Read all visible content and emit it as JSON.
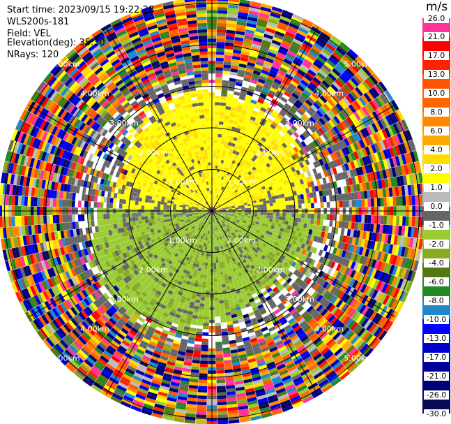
{
  "info": {
    "start_time": "Start time: 2023/09/15 19:22:28",
    "instrument": "WLS200s-181",
    "field": "Field: VEL",
    "elevation": "Elevation(deg): 35.30",
    "nrays": "NRays: 120"
  },
  "range_labels": [
    "1.00km",
    "2.00km",
    "3.00km",
    "4.00km",
    "5.00km"
  ],
  "colorbar": {
    "unit": "m/s",
    "ticks": [
      "26.0",
      "21.0",
      "17.0",
      "13.0",
      "10.0",
      "8.0",
      "6.0",
      "4.0",
      "2.0",
      "1.0",
      "0.0",
      "-1.0",
      "-2.0",
      "-4.0",
      "-6.0",
      "-8.0",
      "-10.0",
      "-13.0",
      "-17.0",
      "-21.0",
      "-26.0",
      "-30.0"
    ],
    "colors": [
      "#ff3399",
      "#ff0000",
      "#ff2200",
      "#ff5500",
      "#ff6600",
      "#ff8800",
      "#ffaa00",
      "#ffdd00",
      "#ffff00",
      "#bbbbbb",
      "#666666",
      "#99cc33",
      "#88aa22",
      "#557711",
      "#228822",
      "#2288cc",
      "#0000ff",
      "#0000cc",
      "#000099",
      "#000077",
      "#0a0a55"
    ]
  }
}
